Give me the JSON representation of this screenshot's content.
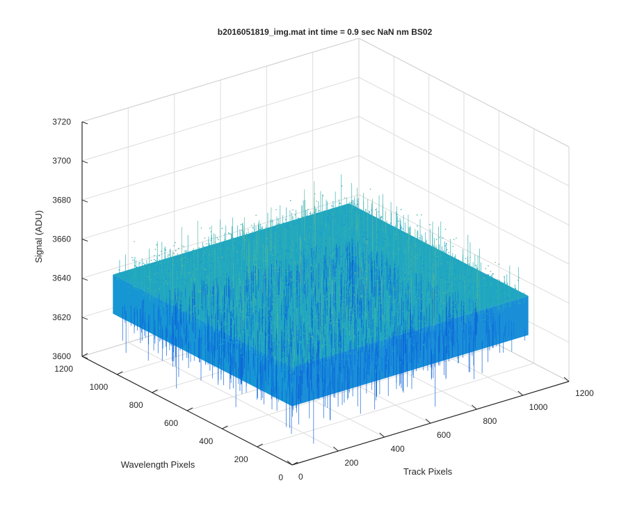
{
  "figure": {
    "title": "b2016051819_img.mat int time = 0.9 sec  NaN nm BS02"
  },
  "chart_data": {
    "type": "surface",
    "title": "b2016051819_img.mat int time = 0.9 sec  NaN nm BS02",
    "xlabel": "Track Pixels",
    "ylabel": "Wavelength Pixels",
    "zlabel": "Signal (ADU)",
    "xlim": [
      0,
      1200
    ],
    "ylim": [
      0,
      1200
    ],
    "zlim": [
      3600,
      3720
    ],
    "xticks": [
      "0",
      "200",
      "400",
      "600",
      "800",
      "1000",
      "1200"
    ],
    "yticks": [
      "0",
      "200",
      "400",
      "600",
      "800",
      "1000",
      "1200"
    ],
    "zticks": [
      "3600",
      "3620",
      "3640",
      "3660",
      "3680",
      "3700",
      "3720"
    ],
    "x_extent": [
      0,
      1024
    ],
    "y_extent": [
      0,
      1024
    ],
    "signal_mean": 3640,
    "signal_range": [
      3605,
      3705
    ],
    "colormap": "parula",
    "grid": true
  }
}
